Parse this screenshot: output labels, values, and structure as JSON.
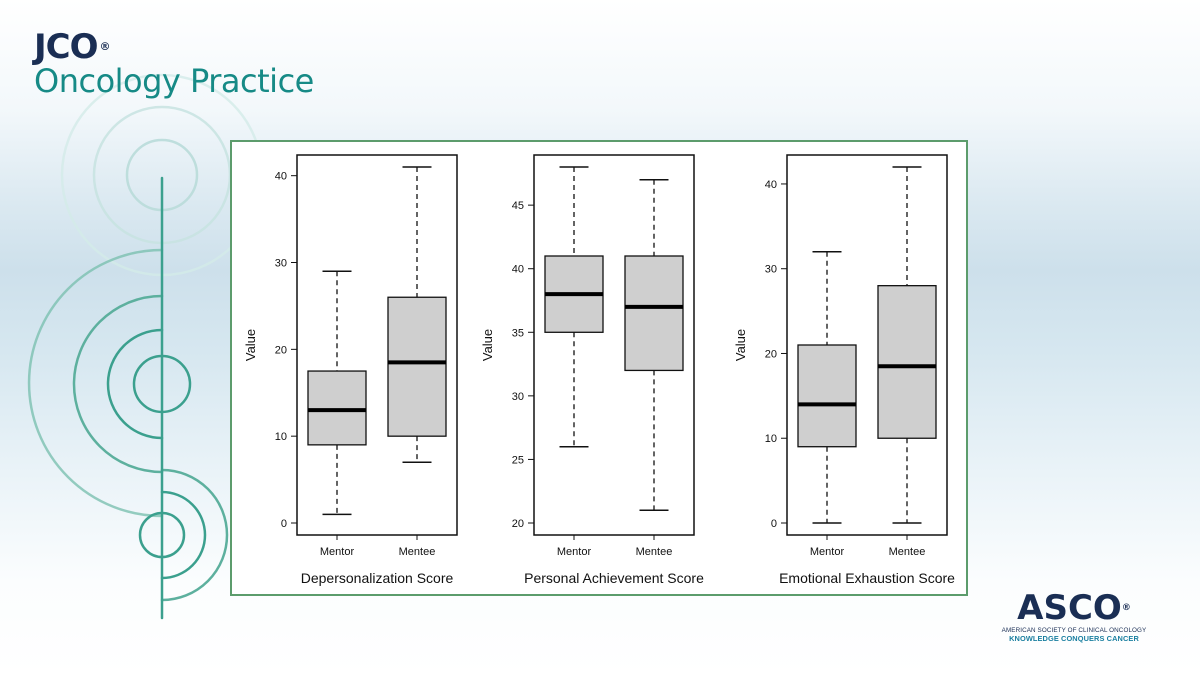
{
  "logo": {
    "jco": "JCO",
    "registered": "®",
    "subtitle": "Oncology Practice"
  },
  "footer_logo": {
    "name": "ASCO",
    "registered": "®",
    "line1": "AMERICAN SOCIETY OF CLINICAL ONCOLOGY",
    "line2": "KNOWLEDGE CONQUERS CANCER"
  },
  "colors": {
    "brand_teal": "#168a86",
    "brand_navy": "#1a2e54",
    "box_fill": "#cfcfcf",
    "panel_border": "#5c9c6c"
  },
  "chart_data": [
    {
      "type": "box",
      "title": "Depersonalization Score",
      "ylabel": "Value",
      "categories": [
        "Mentor",
        "Mentee"
      ],
      "ylim": [
        0,
        41
      ],
      "yticks": [
        0,
        10,
        20,
        30,
        40
      ],
      "boxes": [
        {
          "min": 1,
          "q1": 9,
          "median": 13,
          "q3": 17.5,
          "max": 29
        },
        {
          "min": 7,
          "q1": 10,
          "median": 18.5,
          "q3": 26,
          "max": 41
        }
      ]
    },
    {
      "type": "box",
      "title": "Personal Achievement Score",
      "ylabel": "Value",
      "categories": [
        "Mentor",
        "Mentee"
      ],
      "ylim": [
        20,
        48
      ],
      "yticks": [
        20,
        25,
        30,
        35,
        40,
        45
      ],
      "boxes": [
        {
          "min": 26,
          "q1": 35,
          "median": 38,
          "q3": 41,
          "max": 48
        },
        {
          "min": 21,
          "q1": 32,
          "median": 37,
          "q3": 41,
          "max": 47
        }
      ]
    },
    {
      "type": "box",
      "title": "Emotional Exhaustion Score",
      "ylabel": "Value",
      "categories": [
        "Mentor",
        "Mentee"
      ],
      "ylim": [
        0,
        42
      ],
      "yticks": [
        0,
        10,
        20,
        30,
        40
      ],
      "boxes": [
        {
          "min": 0,
          "q1": 9,
          "median": 14,
          "q3": 21,
          "max": 32
        },
        {
          "min": 0,
          "q1": 10,
          "median": 18.5,
          "q3": 28,
          "max": 42
        }
      ]
    }
  ]
}
